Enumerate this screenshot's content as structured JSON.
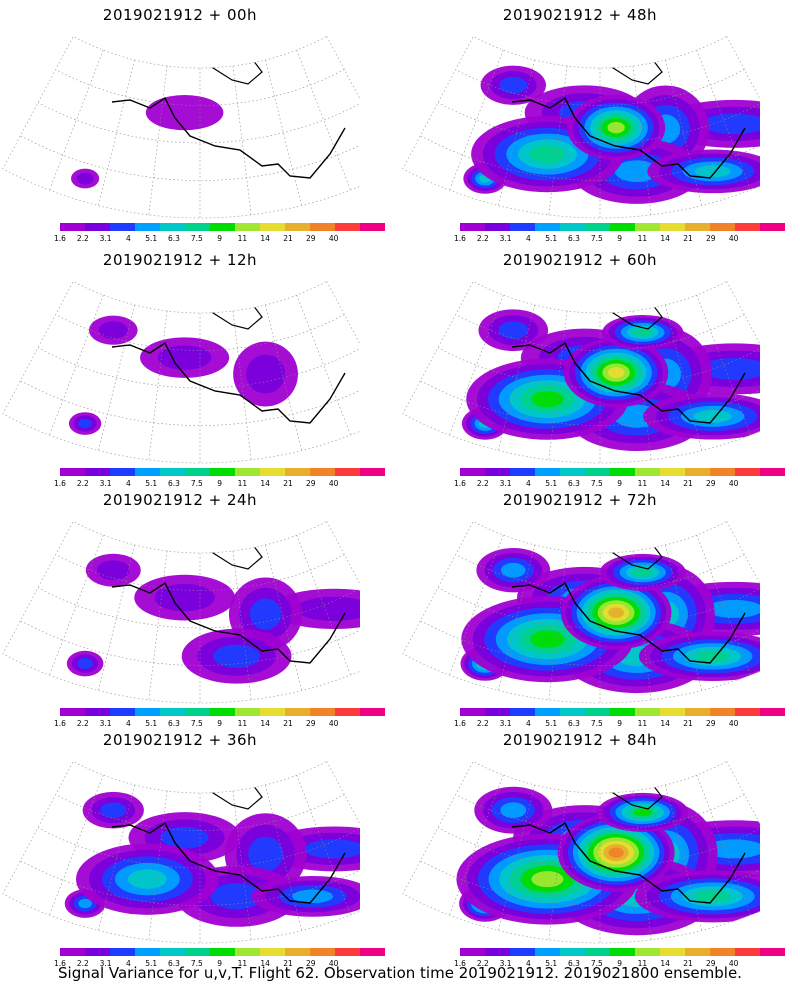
{
  "colorbar": {
    "colors": [
      "#a000d2",
      "#7800dc",
      "#1e3cff",
      "#00a0ff",
      "#00c8c8",
      "#00d28c",
      "#00dc00",
      "#a0e632",
      "#e6dc32",
      "#e6af2d",
      "#f08228",
      "#fa3c3c",
      "#f00082"
    ],
    "labels": [
      "1.6",
      "2.2",
      "3.1",
      "4",
      "5.1",
      "6.3",
      "7.5",
      "9",
      "11",
      "14",
      "21",
      "29",
      "40"
    ]
  },
  "chart_data": [
    {
      "type": "heatmap",
      "title": "2019021912 + 00h",
      "intensity": 0.15
    },
    {
      "type": "heatmap",
      "title": "2019021912 + 12h",
      "intensity": 0.3
    },
    {
      "type": "heatmap",
      "title": "2019021912 + 24h",
      "intensity": 0.45
    },
    {
      "type": "heatmap",
      "title": "2019021912 + 36h",
      "intensity": 0.6
    },
    {
      "type": "heatmap",
      "title": "2019021912 + 48h",
      "intensity": 0.7
    },
    {
      "type": "heatmap",
      "title": "2019021912 + 60h",
      "intensity": 0.8
    },
    {
      "type": "heatmap",
      "title": "2019021912 + 72h",
      "intensity": 0.9
    },
    {
      "type": "heatmap",
      "title": "2019021912 + 84h",
      "intensity": 1.0
    }
  ],
  "footer": "Signal Variance for u,v,T. Flight 62. Observation time 2019021912. 2019021800 ensemble."
}
